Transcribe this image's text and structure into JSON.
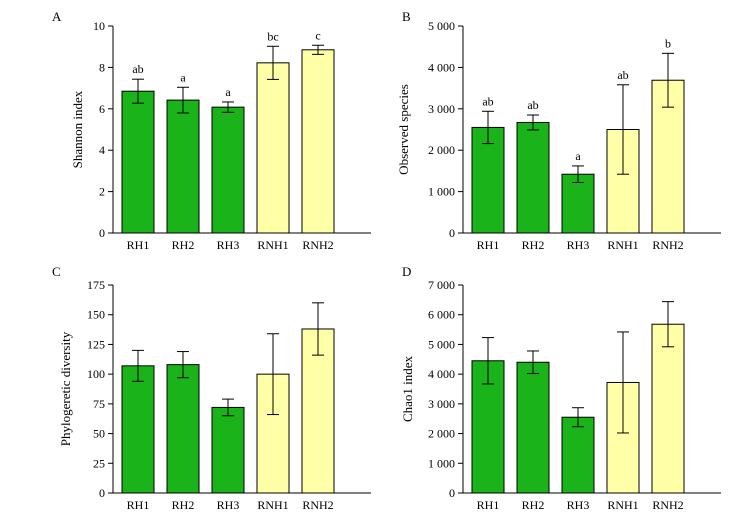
{
  "colors": {
    "rh": "#1ab41a",
    "rnh": "#ffffa8"
  },
  "chart_data": [
    {
      "type": "bar",
      "panel": "A",
      "ylabel": "Shannon index",
      "xlabel": "",
      "ylim": [
        0,
        10
      ],
      "yticks": [
        0,
        2,
        4,
        6,
        8,
        10
      ],
      "ytick_labels": [
        "0",
        "2",
        "4",
        "6",
        "8",
        "10"
      ],
      "categories": [
        "RH1",
        "RH2",
        "RH3",
        "RNH1",
        "RNH2"
      ],
      "values": [
        6.85,
        6.42,
        6.08,
        8.22,
        8.85
      ],
      "errors": [
        0.58,
        0.62,
        0.25,
        0.8,
        0.22
      ],
      "group_colors": [
        "rh",
        "rh",
        "rh",
        "rnh",
        "rnh"
      ],
      "letters": [
        "ab",
        "a",
        "a",
        "bc",
        "c"
      ]
    },
    {
      "type": "bar",
      "panel": "B",
      "ylabel": "Observed species",
      "xlabel": "",
      "ylim": [
        0,
        5000
      ],
      "yticks": [
        0,
        1000,
        2000,
        3000,
        4000,
        5000
      ],
      "ytick_labels": [
        "0",
        "1 000",
        "2 000",
        "3 000",
        "4 000",
        "5 000"
      ],
      "categories": [
        "RH1",
        "RH2",
        "RH3",
        "RNH1",
        "RNH2"
      ],
      "values": [
        2550,
        2670,
        1420,
        2500,
        3690
      ],
      "errors": [
        390,
        180,
        200,
        1080,
        650
      ],
      "group_colors": [
        "rh",
        "rh",
        "rh",
        "rnh",
        "rnh"
      ],
      "letters": [
        "ab",
        "ab",
        "a",
        "ab",
        "b"
      ]
    },
    {
      "type": "bar",
      "panel": "C",
      "ylabel": "Phylogeretic diversity",
      "xlabel": "",
      "ylim": [
        0,
        175
      ],
      "yticks": [
        0,
        25,
        50,
        75,
        100,
        125,
        150,
        175
      ],
      "ytick_labels": [
        "0",
        "25",
        "50",
        "75",
        "100",
        "125",
        "150",
        "175"
      ],
      "categories": [
        "RH1",
        "RH2",
        "RH3",
        "RNH1",
        "RNH2"
      ],
      "values": [
        107,
        108,
        72,
        100,
        138
      ],
      "errors": [
        13,
        11,
        7,
        34,
        22
      ],
      "group_colors": [
        "rh",
        "rh",
        "rh",
        "rnh",
        "rnh"
      ],
      "letters": []
    },
    {
      "type": "bar",
      "panel": "D",
      "ylabel": "Chao1 index",
      "xlabel": "",
      "ylim": [
        0,
        7000
      ],
      "yticks": [
        0,
        1000,
        2000,
        3000,
        4000,
        5000,
        6000,
        7000
      ],
      "ytick_labels": [
        "0",
        "1 000",
        "2 000",
        "3 000",
        "4 000",
        "5 000",
        "6 000",
        "7 000"
      ],
      "categories": [
        "RH1",
        "RH2",
        "RH3",
        "RNH1",
        "RNH2"
      ],
      "values": [
        4450,
        4400,
        2550,
        3720,
        5680
      ],
      "errors": [
        780,
        380,
        320,
        1700,
        760
      ],
      "group_colors": [
        "rh",
        "rh",
        "rh",
        "rnh",
        "rnh"
      ],
      "letters": []
    }
  ]
}
